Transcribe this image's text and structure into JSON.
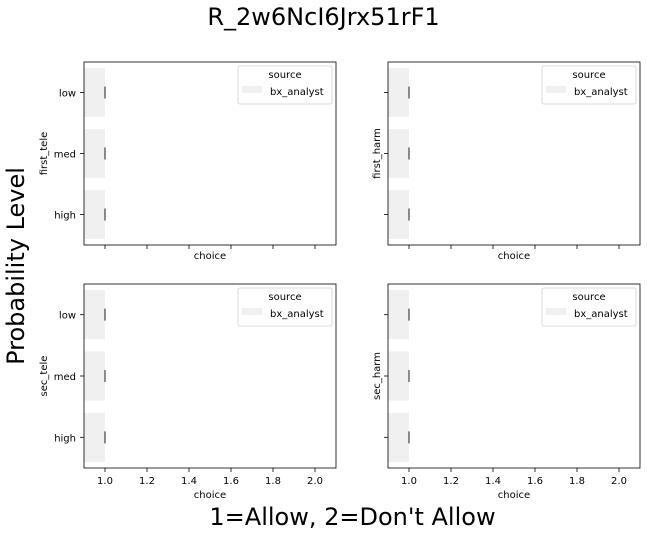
{
  "figure": {
    "suptitle": "R_2w6NcI6Jrx51rF1",
    "supylabel": "Probability Level",
    "supxlabel": "1=Allow, 2=Don't Allow"
  },
  "chart_data": [
    {
      "type": "bar",
      "orientation": "horizontal",
      "ylabel": "first_tele",
      "xlabel": "choice",
      "categories": [
        "low",
        "med",
        "high"
      ],
      "series": [
        {
          "name": "bx_analyst",
          "values": [
            1.0,
            1.0,
            1.0
          ]
        }
      ],
      "xlim": [
        0.9,
        2.1
      ],
      "xticks": [
        "1.0",
        "1.2",
        "1.4",
        "1.6",
        "1.8",
        "2.0"
      ],
      "show_xticklabels": false,
      "show_yticklabels": true,
      "legend": {
        "title": "source",
        "position": "upper right"
      }
    },
    {
      "type": "bar",
      "orientation": "horizontal",
      "ylabel": "first_harm",
      "xlabel": "choice",
      "categories": [
        "low",
        "med",
        "high"
      ],
      "series": [
        {
          "name": "bx_analyst",
          "values": [
            1.0,
            1.0,
            1.0
          ]
        }
      ],
      "xlim": [
        0.9,
        2.1
      ],
      "xticks": [
        "1.0",
        "1.2",
        "1.4",
        "1.6",
        "1.8",
        "2.0"
      ],
      "show_xticklabels": false,
      "show_yticklabels": false,
      "legend": {
        "title": "source",
        "position": "upper right"
      }
    },
    {
      "type": "bar",
      "orientation": "horizontal",
      "ylabel": "sec_tele",
      "xlabel": "choice",
      "categories": [
        "low",
        "med",
        "high"
      ],
      "series": [
        {
          "name": "bx_analyst",
          "values": [
            1.0,
            1.0,
            1.0
          ]
        }
      ],
      "xlim": [
        0.9,
        2.1
      ],
      "xticks": [
        "1.0",
        "1.2",
        "1.4",
        "1.6",
        "1.8",
        "2.0"
      ],
      "show_xticklabels": true,
      "show_yticklabels": true,
      "legend": {
        "title": "source",
        "position": "upper right"
      }
    },
    {
      "type": "bar",
      "orientation": "horizontal",
      "ylabel": "sec_harm",
      "xlabel": "choice",
      "categories": [
        "low",
        "med",
        "high"
      ],
      "series": [
        {
          "name": "bx_analyst",
          "values": [
            1.0,
            1.0,
            1.0
          ]
        }
      ],
      "xlim": [
        0.9,
        2.1
      ],
      "xticks": [
        "1.0",
        "1.2",
        "1.4",
        "1.6",
        "1.8",
        "2.0"
      ],
      "show_xticklabels": true,
      "show_yticklabels": false,
      "legend": {
        "title": "source",
        "position": "upper right"
      }
    }
  ],
  "colors": {
    "bar": "#f0f0f0",
    "errorbar": "#424242",
    "axis": "#000000"
  }
}
